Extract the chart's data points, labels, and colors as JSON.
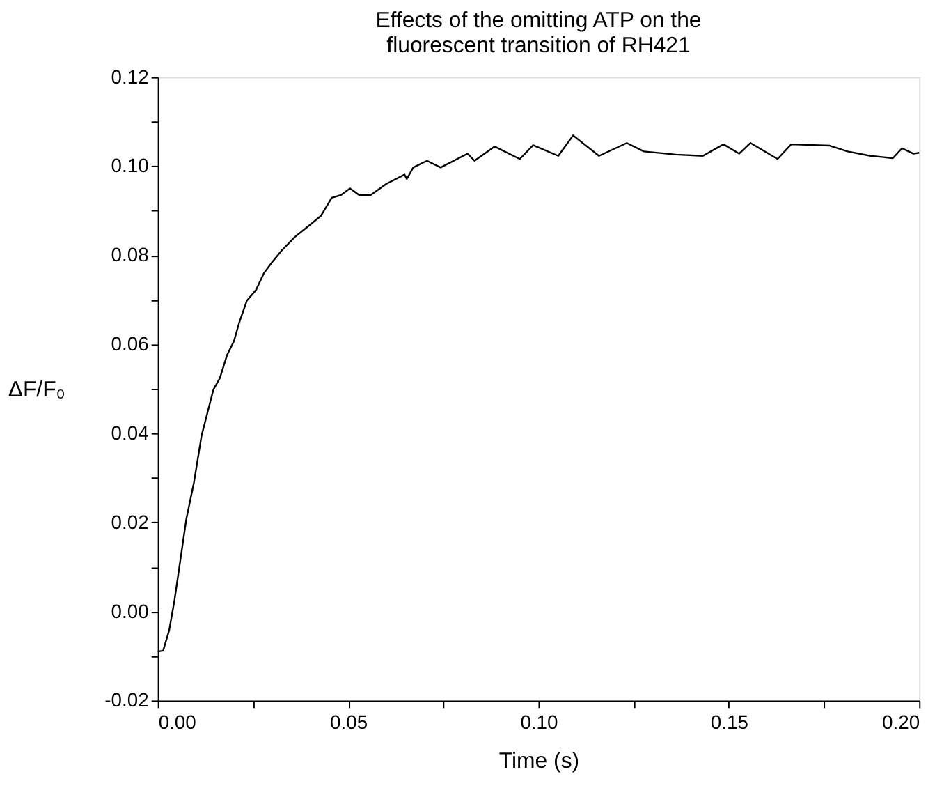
{
  "chart_data": {
    "type": "line",
    "title": "Effects of the omitting ATP on the fluorescent transition of RH421",
    "xlabel": "Time (s)",
    "ylabel": "ΔF/F₀",
    "x": [
      0,
      0.0014,
      0.003,
      0.0044,
      0.0059,
      0.0075,
      0.0095,
      0.0115,
      0.0146,
      0.0163,
      0.0182,
      0.02,
      0.0214,
      0.0234,
      0.0258,
      0.0279,
      0.03,
      0.0327,
      0.036,
      0.0398,
      0.0428,
      0.0457,
      0.0481,
      0.0505,
      0.0529,
      0.0559,
      0.06,
      0.0648,
      0.0654,
      0.0671,
      0.0707,
      0.0743,
      0.0814,
      0.0832,
      0.0885,
      0.0951,
      0.0986,
      0.1052,
      0.1091,
      0.1159,
      0.1232,
      0.1277,
      0.1361,
      0.1432,
      0.1486,
      0.1527,
      0.1557,
      0.1628,
      0.1664,
      0.1765,
      0.1812,
      0.1872,
      0.1931,
      0.1955,
      0.1985,
      0.2
    ],
    "series": [
      {
        "color": "#000000",
        "values": [
          -0.009,
          -0.0088,
          -0.0042,
          0.0026,
          0.0114,
          0.0208,
          0.029,
          0.0395,
          0.0498,
          0.0524,
          0.0576,
          0.0607,
          0.0649,
          0.0698,
          0.0722,
          0.076,
          0.0784,
          0.0812,
          0.0841,
          0.0867,
          0.0888,
          0.0929,
          0.0935,
          0.095,
          0.0935,
          0.0935,
          0.096,
          0.0981,
          0.0971,
          0.0997,
          0.1012,
          0.0997,
          0.1028,
          0.1012,
          0.1044,
          0.1016,
          0.1047,
          0.1023,
          0.1069,
          0.1023,
          0.1052,
          0.1033,
          0.1026,
          0.1023,
          0.1049,
          0.1028,
          0.1052,
          0.1016,
          0.1049,
          0.1046,
          0.1033,
          0.1023,
          0.1018,
          0.104,
          0.1028,
          0.103
        ]
      }
    ],
    "xlim": [
      0,
      0.2
    ],
    "ylim": [
      -0.02,
      0.12
    ],
    "xticks": [
      {
        "value": 0,
        "label": "0.00"
      },
      {
        "value": 0.025,
        "label": null
      },
      {
        "value": 0.05,
        "label": "0.05"
      },
      {
        "value": 0.075,
        "label": null
      },
      {
        "value": 0.1,
        "label": "0.10"
      },
      {
        "value": 0.125,
        "label": null
      },
      {
        "value": 0.15,
        "label": "0.15"
      },
      {
        "value": 0.175,
        "label": null
      },
      {
        "value": 0.2,
        "label": "0.20"
      }
    ],
    "yticks": [
      {
        "value": -0.02,
        "label": "-0.02"
      },
      {
        "value": -0.01,
        "label": null
      },
      {
        "value": 0,
        "label": "0.00"
      },
      {
        "value": 0.01,
        "label": null
      },
      {
        "value": 0.02,
        "label": "0.02"
      },
      {
        "value": 0.03,
        "label": null
      },
      {
        "value": 0.04,
        "label": "0.04"
      },
      {
        "value": 0.05,
        "label": null
      },
      {
        "value": 0.06,
        "label": "0.06"
      },
      {
        "value": 0.07,
        "label": null
      },
      {
        "value": 0.08,
        "label": "0.08"
      },
      {
        "value": 0.09,
        "label": null
      },
      {
        "value": 0.1,
        "label": "0.10"
      },
      {
        "value": 0.11,
        "label": null
      },
      {
        "value": 0.12,
        "label": "0.12"
      }
    ],
    "grid": false,
    "line_style": "solid",
    "marker": "none"
  }
}
